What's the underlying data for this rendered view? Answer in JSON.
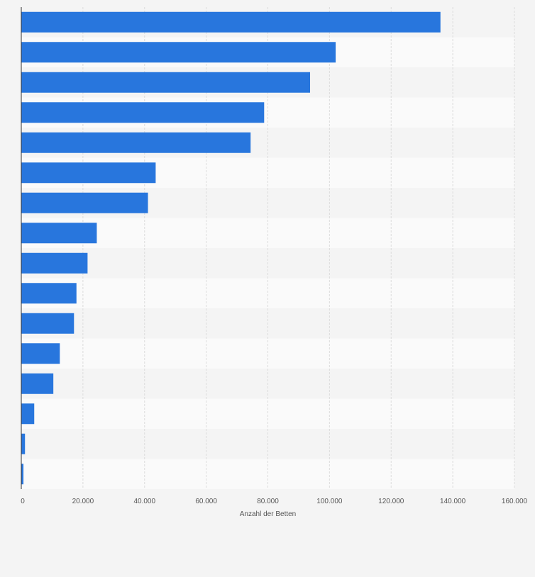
{
  "chart_data": {
    "type": "bar",
    "orientation": "horizontal",
    "categories": [
      "",
      "",
      "",
      "",
      "",
      "",
      "",
      "",
      "",
      "",
      "",
      "",
      "",
      "",
      "",
      ""
    ],
    "values": [
      136000,
      102000,
      93700,
      78800,
      74400,
      43600,
      41100,
      24500,
      21500,
      17900,
      17100,
      12500,
      10400,
      4200,
      1200,
      700
    ],
    "xlabel": "Anzahl der Betten",
    "xlim": [
      0,
      160000
    ],
    "x_ticks": [
      0,
      20000,
      40000,
      60000,
      80000,
      100000,
      120000,
      140000,
      160000
    ],
    "x_tick_labels": [
      "0",
      "20.000",
      "40.000",
      "60.000",
      "80.000",
      "100.000",
      "120.000",
      "140.000",
      "160.000"
    ],
    "grid": true,
    "colors": {
      "bar": "#2876dd",
      "background": "#f4f4f4",
      "band_light": "#fafafa",
      "band_dark": "#f4f4f4",
      "grid": "#dcdcdc",
      "axis": "#333333"
    }
  }
}
